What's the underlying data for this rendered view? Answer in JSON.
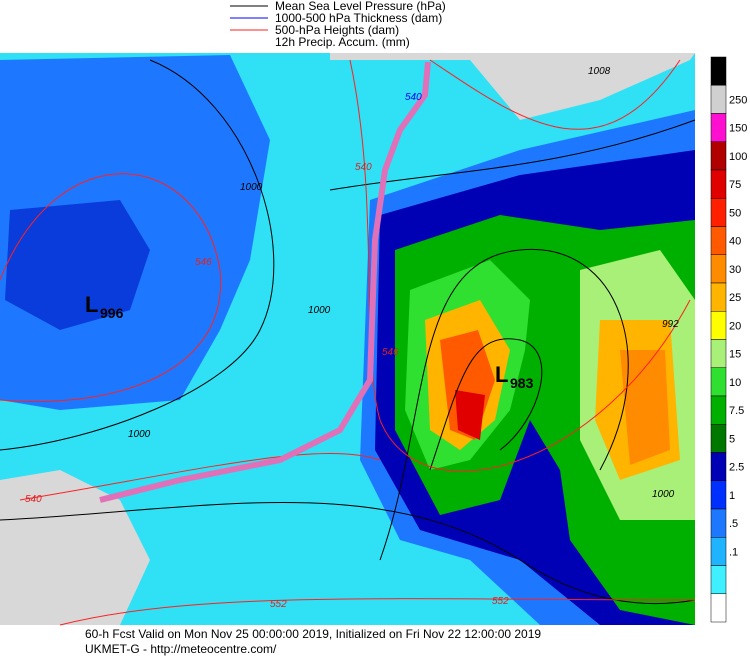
{
  "legend": [
    {
      "label": "Mean Sea Level Pressure (hPa)",
      "color": "#000000"
    },
    {
      "label": "1000-500 hPa Thickness (dam)",
      "color": "#0000ff"
    },
    {
      "label": "500-hPa Heights (dam)",
      "color": "#ff2020"
    },
    {
      "label": "12h Precip. Accum. (mm)"
    }
  ],
  "colorbar": {
    "colors": [
      "#000000",
      "#d0d0d0",
      "#ff10d0",
      "#b00000",
      "#e00000",
      "#ff2000",
      "#ff5a00",
      "#ff8c00",
      "#ffb400",
      "#ffff00",
      "#a8f078",
      "#30e030",
      "#00b000",
      "#007800",
      "#0000b4",
      "#0030ff",
      "#1e78ff",
      "#20b4ff",
      "#40f0ff",
      "#ffffff"
    ],
    "labels": [
      "250",
      "150",
      "100",
      "75",
      "50",
      "40",
      "30",
      "25",
      "20",
      "15",
      "10",
      "7.5",
      "5",
      "2.5",
      "1",
      ".5",
      ".1"
    ]
  },
  "map": {
    "lows": [
      {
        "symbol": "L",
        "pressure": "996"
      },
      {
        "symbol": "L",
        "pressure": "983"
      }
    ],
    "labels": [
      "1000",
      "1000",
      "1000",
      "1000",
      "1008",
      "992",
      "540",
      "546",
      "552",
      "552",
      "540",
      "546",
      "540"
    ]
  },
  "footer": {
    "line1": "60-h Fcst Valid on Mon Nov 25 00:00:00 2019, Initialized on Fri Nov 22 12:00:00 2019",
    "line2": "UKMET-G  - http://meteocentre.com/"
  }
}
